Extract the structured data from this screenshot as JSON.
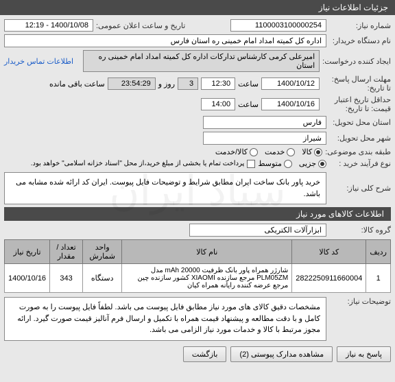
{
  "header": {
    "title": "جزئیات اطلاعات نیاز"
  },
  "fields": {
    "need_no_label": "شماره نیاز:",
    "need_no": "1100003100000254",
    "announce_label": "تاریخ و ساعت اعلان عمومی:",
    "announce_value": "1400/10/08 - 12:19",
    "buyer_label": "نام دستگاه خریدار:",
    "buyer_value": "اداره کل کمیته امداد امام خمینی  ره  استان فارس",
    "creator_label": "ایجاد کننده درخواست:",
    "creator_value": "امیرعلی کرمی کارشناس تدارکات اداره کل کمیته امداد امام خمینی  ره  استان",
    "contact_link": "اطلاعات تماس خریدار",
    "deadline_label": "مهلت ارسال پاسخ:",
    "deadline_suffix": "تا تاریخ:",
    "deadline_date": "1400/10/12",
    "deadline_time_label": "ساعت",
    "deadline_time": "12:30",
    "days_label": "روز و",
    "days": "3",
    "remaining_time": "23:54:29",
    "remaining_label": "ساعت باقی مانده",
    "validity_label": "حداقل تاریخ اعتبار",
    "validity_suffix": "قیمت: تا تاریخ:",
    "validity_date": "1400/10/16",
    "validity_time_label": "ساعت",
    "validity_time": "14:00",
    "province_label": "استان محل تحویل:",
    "province": "فارس",
    "city_label": "شهر محل تحویل:",
    "city": "شیراز",
    "category_label": "طبقه بندی موضوعی:",
    "cat_goods": "کالا",
    "cat_service": "خدمت",
    "cat_both": "کالا/خدمت",
    "buy_type_label": "نوع فرآیند خرید :",
    "buy_partial": "جزیی",
    "buy_medium": "متوسط",
    "payment_note": "پرداخت تمام یا بخشی از مبلغ خرید،از محل \"اسناد خزانه اسلامی\" خواهد بود."
  },
  "summary": {
    "label": "شرح کلی نیاز:",
    "text": "خرید پاور بانک ساخت ایران مطابق شرایط و توضیحات فایل پیوست. ایران کد ارائه شده مشابه می باشد."
  },
  "items_header": "اطلاعات کالاهای مورد نیاز",
  "group_label": "گروه کالا:",
  "group_value": "ابزارآلات الکتریکی",
  "table": {
    "cols": [
      "ردیف",
      "کد کالا",
      "نام کالا",
      "واحد شمارش",
      "تعداد / مقدار",
      "تاریخ نیاز"
    ],
    "rows": [
      [
        "1",
        "2822250911660004",
        "شارژر همراه پاور بانک ظرفیت 20000 mAh مدل PLM05ZM مرجع سازنده XIAOMI کشور سازنده چین مرجع عرضه کننده رایانه همراه کیان",
        "دستگاه",
        "343",
        "1400/10/16"
      ]
    ]
  },
  "notes": {
    "label": "توضیحات نیاز:",
    "text": "مشخصات دقیق کالای های مورد نیاز مطابق فایل پیوست می باشد. لطفاً فایل پیوست را به صورت کامل و با دقت مطالعه و پیشنهاد قیمت همراه با تکمیل و ارسال فرم آنالیز قیمت صورت گیرد. ارائه مجوز مرتبط با کالا و خدمات مورد نیاز الزامی می باشد."
  },
  "buttons": {
    "reply": "پاسخ به نیاز",
    "attachments": "مشاهده مدارک پیوستی (2)",
    "back": "بازگشت"
  },
  "colors": {
    "header_bg": "#4a4a4a",
    "field_bg": "#ffffff",
    "gray_bg": "#d8d8d8",
    "link": "#1a5cc8"
  }
}
